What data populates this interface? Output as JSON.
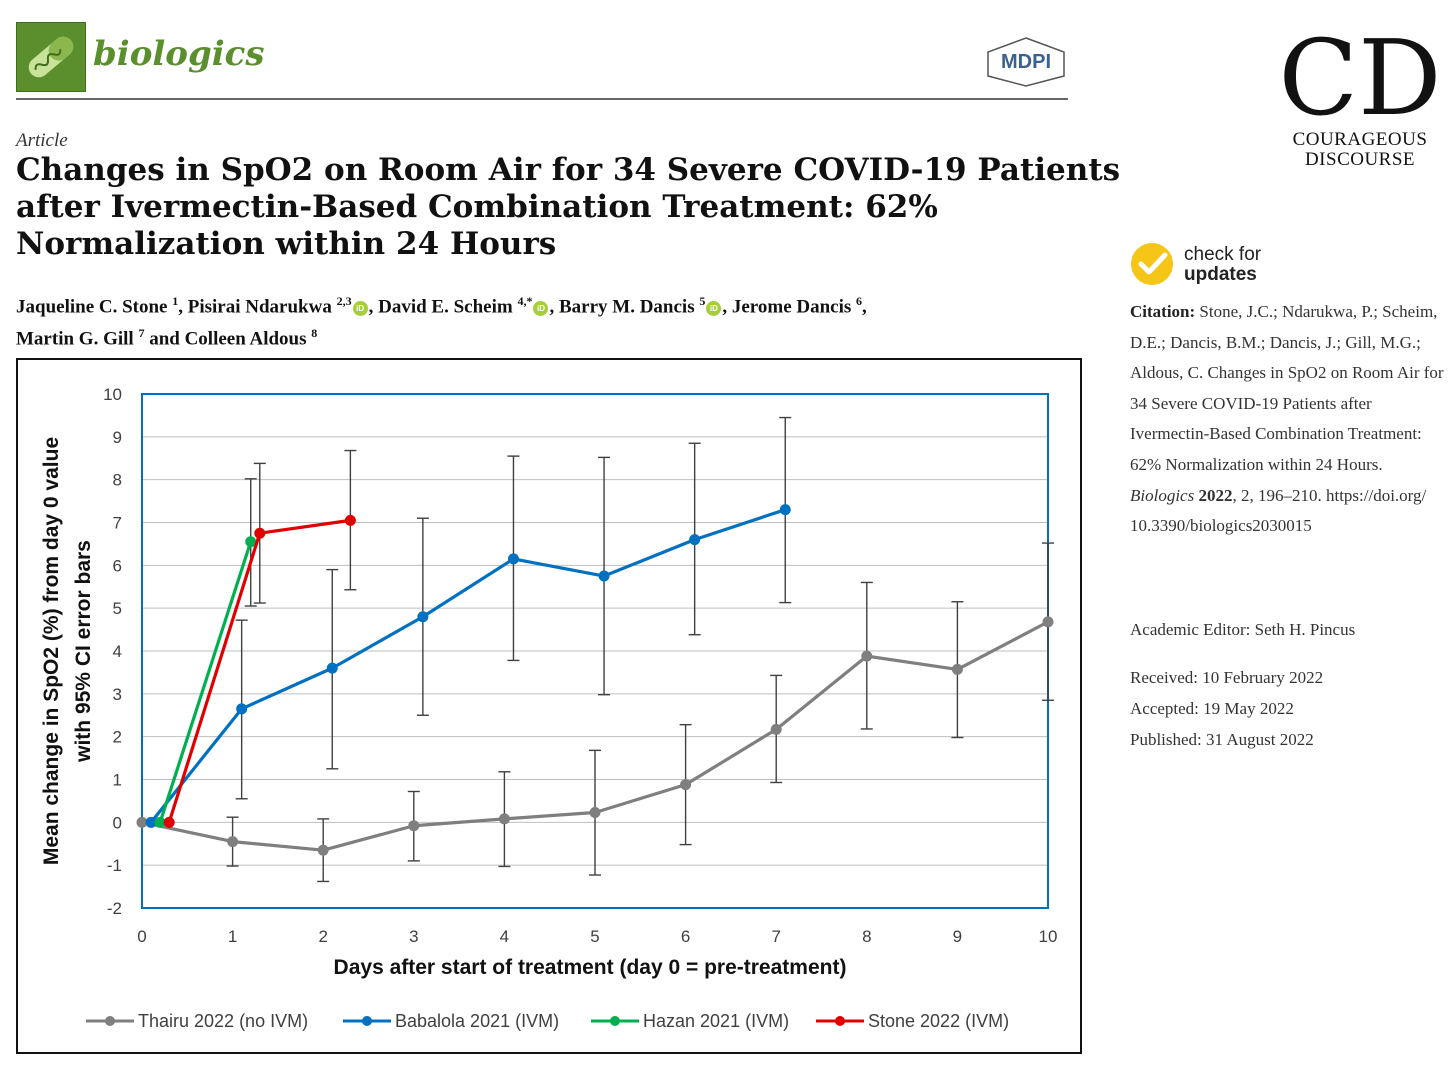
{
  "header": {
    "journal_name": "biologics",
    "publisher_logo_text": "MDPI"
  },
  "brand": {
    "logo_monogram": "CD",
    "line1": "COURAGEOUS",
    "line2": "DISCOURSE"
  },
  "article": {
    "type": "Article",
    "title_lines": [
      "Changes in SpO2 on Room Air for 34 Severe COVID-19 Patients",
      "after Ivermectin-Based Combination Treatment: 62%",
      "Normalization within 24 Hours"
    ],
    "authors_line1": [
      {
        "name": "Jaqueline C. Stone",
        "sup": "1",
        "orcid": false,
        "sep": ", "
      },
      {
        "name": "Pisirai Ndarukwa",
        "sup": "2,3",
        "orcid": true,
        "sep": ", "
      },
      {
        "name": "David E. Scheim",
        "sup": "4,*",
        "orcid": true,
        "sep": ", "
      },
      {
        "name": "Barry M. Dancis",
        "sup": "5",
        "orcid": true,
        "sep": ", "
      },
      {
        "name": "Jerome Dancis",
        "sup": "6",
        "orcid": false,
        "sep": ","
      }
    ],
    "authors_line2": [
      {
        "name": "Martin G. Gill",
        "sup": "7",
        "orcid": false,
        "sep": " and "
      },
      {
        "name": "Colleen Aldous",
        "sup": "8",
        "orcid": false,
        "sep": ""
      }
    ],
    "orcid_icon_text": "iD"
  },
  "sidebar": {
    "check_updates_line1": "check for",
    "check_updates_line2": "updates",
    "citation_label": "Citation:",
    "citation_text": "Stone, J.C.; Ndarukwa, P.; Scheim, D.E.; Dancis, B.M.; Dancis, J.; Gill, M.G.; Aldous, C. Changes in SpO2 on Room Air for 34 Severe COVID-19 Patients after Ivermectin-Based Combination Treatment: 62% Normalization within 24 Hours. ",
    "citation_journal": "Biologics",
    "citation_year": "2022",
    "citation_rest": ", 2, 196–210.  https://doi.org/ 10.3390/biologics2030015",
    "academic_editor": "Academic Editor: Seth H. Pincus",
    "received": "Received: 10 February 2022",
    "accepted": "Accepted: 19 May 2022",
    "published": "Published: 31 August 2022"
  },
  "chart_data": {
    "type": "line",
    "title": "",
    "xlabel": "Days after start of treatment (day 0 = pre-treatment)",
    "ylabel_line1": "Mean change in SpO2 (%) from day 0 value",
    "ylabel_line2": "with 95% CI error bars",
    "xlim": [
      0,
      10
    ],
    "ylim": [
      -2,
      10
    ],
    "xticks": [
      0,
      1,
      2,
      3,
      4,
      5,
      6,
      7,
      8,
      9,
      10
    ],
    "yticks": [
      -2,
      -1,
      0,
      1,
      2,
      3,
      4,
      5,
      6,
      7,
      8,
      9,
      10
    ],
    "grid": true,
    "legend_position": "bottom",
    "series": [
      {
        "name": "Thairu 2022 (no IVM)",
        "color": "#7f7f7f",
        "x": [
          0,
          1,
          2,
          3,
          4,
          5,
          6,
          7,
          8,
          9,
          10
        ],
        "y": [
          0,
          -0.45,
          -0.65,
          -0.08,
          0.08,
          0.23,
          0.88,
          2.17,
          3.88,
          3.57,
          4.68
        ],
        "err_low": [
          null,
          -1.02,
          -1.38,
          -0.9,
          -1.03,
          -1.23,
          -0.52,
          0.93,
          2.18,
          1.98,
          2.85
        ],
        "err_high": [
          null,
          0.12,
          0.08,
          0.72,
          1.18,
          1.68,
          2.28,
          3.43,
          5.6,
          5.15,
          6.52
        ]
      },
      {
        "name": "Babalola 2021 (IVM)",
        "color": "#0070c0",
        "x": [
          0.1,
          1.1,
          2.1,
          3.1,
          4.1,
          5.1,
          6.1,
          7.1
        ],
        "y": [
          0,
          2.65,
          3.6,
          4.8,
          6.15,
          5.75,
          6.6,
          7.3
        ],
        "err_low": [
          null,
          0.55,
          1.25,
          2.5,
          3.78,
          2.98,
          4.38,
          5.13
        ],
        "err_high": [
          null,
          4.72,
          5.9,
          7.1,
          8.55,
          8.52,
          8.85,
          9.45
        ]
      },
      {
        "name": "Hazan 2021 (IVM)",
        "color": "#00b050",
        "x": [
          0.2,
          1.2
        ],
        "y": [
          0,
          6.55
        ],
        "err_low": [
          null,
          5.05
        ],
        "err_high": [
          null,
          8.02
        ]
      },
      {
        "name": "Stone 2022 (IVM)",
        "color": "#e00000",
        "x": [
          0.3,
          1.3,
          2.3
        ],
        "y": [
          0,
          6.75,
          7.05
        ],
        "err_low": [
          null,
          5.12,
          5.43
        ],
        "err_high": [
          null,
          8.38,
          8.68
        ]
      }
    ]
  }
}
